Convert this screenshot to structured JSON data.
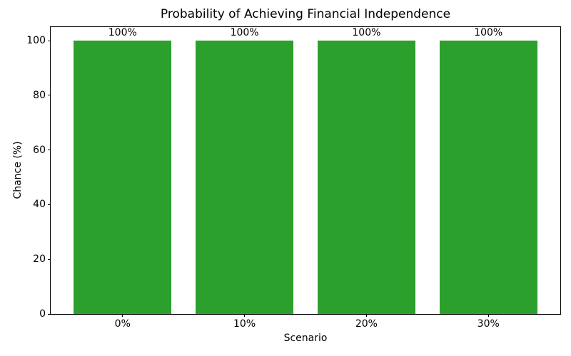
{
  "figure": {
    "background": "#ffffff",
    "axis_color": "#000000",
    "text_color": "#000000"
  },
  "chart_data": {
    "type": "bar",
    "title": "Probability of Achieving Financial Independence",
    "xlabel": "Scenario",
    "ylabel": "Chance (%)",
    "categories": [
      "0%",
      "10%",
      "20%",
      "30%"
    ],
    "values": [
      100,
      100,
      100,
      100
    ],
    "bar_labels": [
      "100%",
      "100%",
      "100%",
      "100%"
    ],
    "bar_color": "#2ca02c",
    "ylim": [
      0,
      105
    ],
    "yticks": [
      0,
      20,
      40,
      60,
      80,
      100
    ],
    "xlim": [
      -0.59,
      3.59
    ],
    "bar_width_units": 0.8,
    "grid": false,
    "legend": "none"
  }
}
